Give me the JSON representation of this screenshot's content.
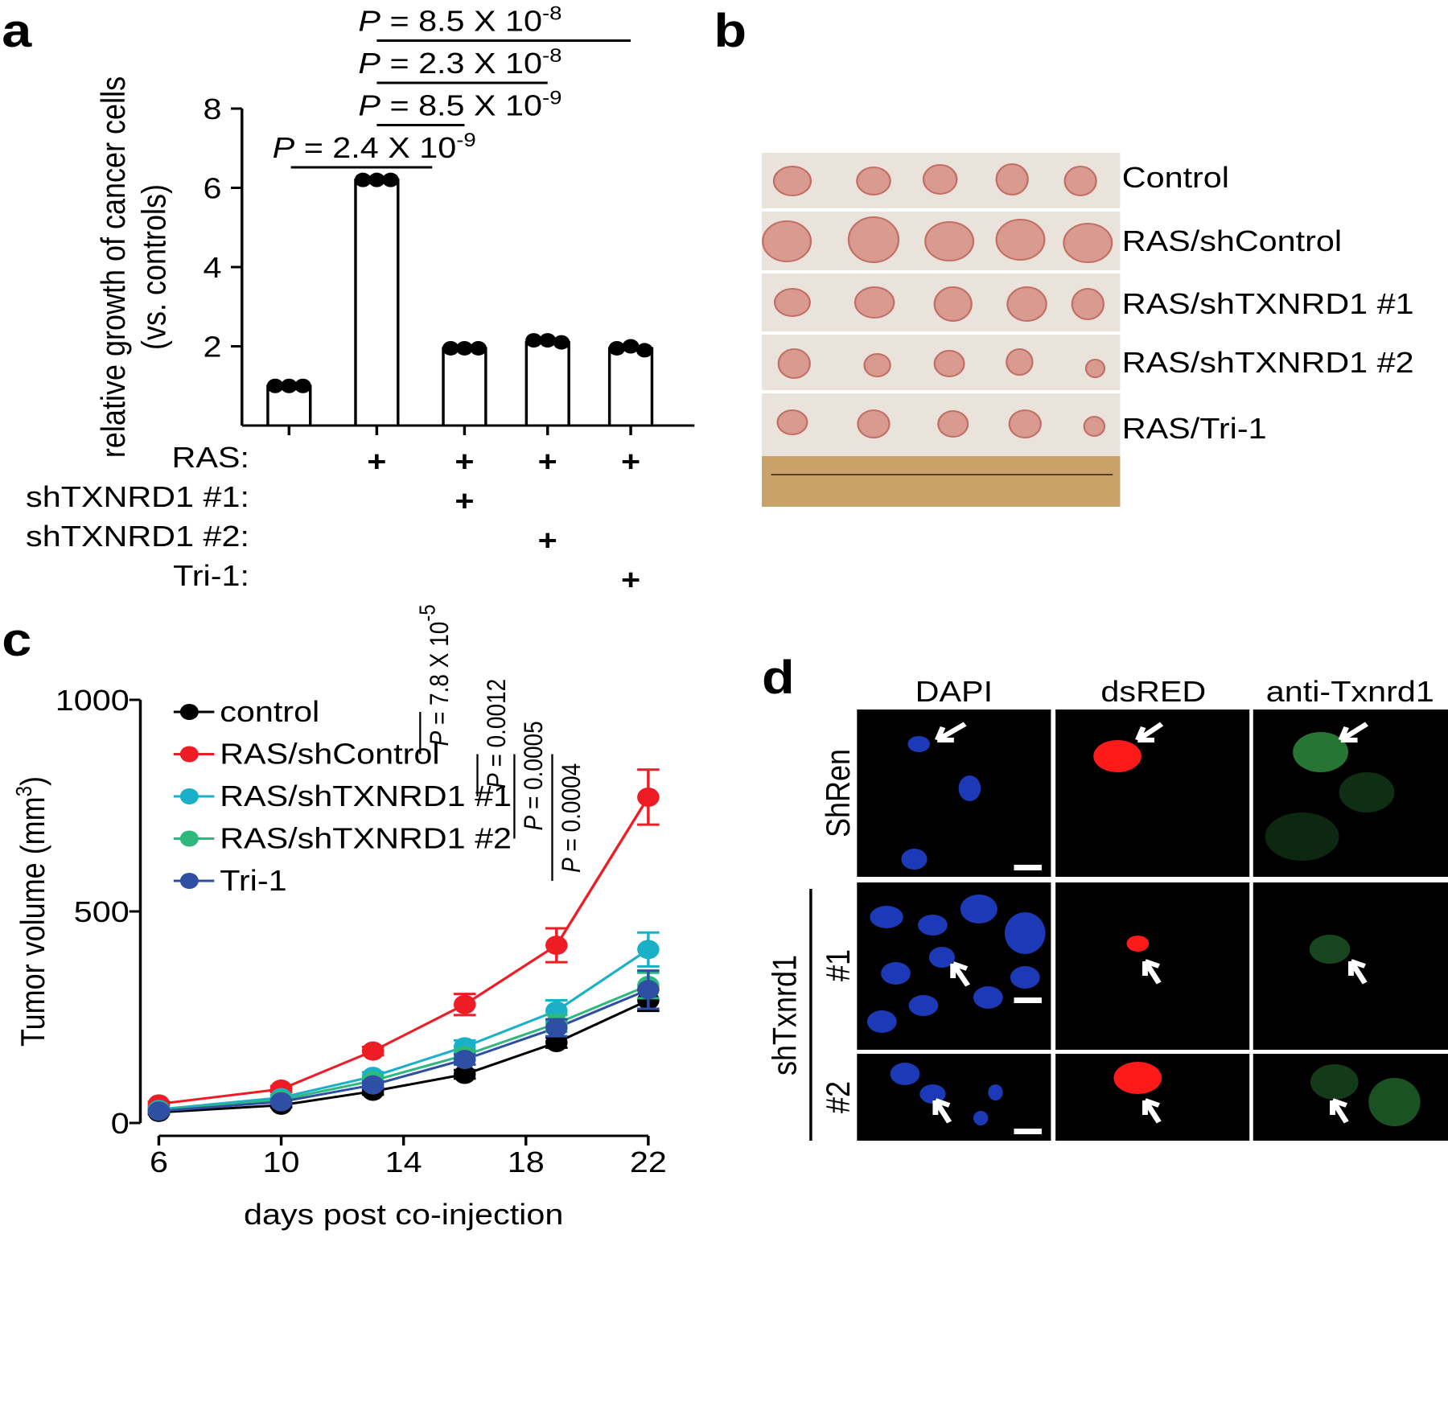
{
  "panel_labels": [
    "a",
    "b",
    "c",
    "d"
  ],
  "chart_data": [
    {
      "type": "bar",
      "ylabel": [
        "relative growth of cancer cells",
        "(vs. controls)"
      ],
      "categories": [
        null,
        null,
        null,
        null,
        null
      ],
      "values": [
        1.0,
        6.2,
        1.95,
        2.1,
        1.95
      ],
      "points": [
        [
          1.0,
          1.0,
          1.0
        ],
        [
          6.2,
          6.2,
          6.2
        ],
        [
          1.95,
          1.95,
          1.95
        ],
        [
          2.15,
          2.15,
          2.1
        ],
        [
          1.95,
          2.0,
          1.9
        ]
      ],
      "color": "#ffffff",
      "ylim": [
        0,
        8
      ],
      "yticks": [
        2,
        4,
        6,
        8
      ],
      "conditions": [
        {
          "label": "RAS:",
          "marks": [
            null,
            "+",
            "+",
            "+",
            "+"
          ]
        },
        {
          "label": "shTXNRD1 #1:",
          "marks": [
            null,
            null,
            "+",
            null,
            null
          ]
        },
        {
          "label": "shTXNRD1 #2:",
          "marks": [
            null,
            null,
            null,
            "+",
            null
          ]
        },
        {
          "label": "Tri-1:",
          "marks": [
            null,
            null,
            null,
            null,
            "+"
          ]
        }
      ],
      "comparisons": [
        {
          "pair": [
            0,
            1
          ],
          "p": "P",
          "text": " = 2.4 X 10",
          "exp": "-9"
        },
        {
          "pair": [
            1,
            2
          ],
          "p": "P",
          "text": " = 8.5 X 10",
          "exp": "-9"
        },
        {
          "pair": [
            1,
            3
          ],
          "p": "P",
          "text": " = 2.3 X 10",
          "exp": "-8"
        },
        {
          "pair": [
            1,
            4
          ],
          "p": "P",
          "text": " = 8.5 X 10",
          "exp": "-8"
        }
      ]
    },
    {
      "type": "line",
      "ylabel": {
        "text": "Tumor volume (mm",
        "sup": "3",
        "end": ")"
      },
      "xlabel": "days post co-injection",
      "x": [
        6,
        10,
        13,
        16,
        19,
        22
      ],
      "xlim": [
        6,
        22
      ],
      "xticks": [
        6,
        10,
        14,
        18,
        22
      ],
      "ylim": [
        0,
        1000
      ],
      "yticks": [
        0,
        500,
        1000
      ],
      "series": [
        {
          "name": "control",
          "color": "#000000",
          "values": [
            25,
            42,
            75,
            115,
            190,
            290
          ],
          "errors": [
            4,
            5,
            8,
            10,
            12,
            25
          ]
        },
        {
          "name": "RAS/shControl",
          "color": "#ee1c25",
          "values": [
            45,
            80,
            170,
            280,
            420,
            770
          ],
          "errors": [
            5,
            7,
            10,
            25,
            40,
            65
          ]
        },
        {
          "name": "RAS/shTXNRD1 #1",
          "color": "#1ab0c8",
          "values": [
            32,
            60,
            110,
            180,
            265,
            410
          ],
          "errors": [
            4,
            6,
            10,
            15,
            25,
            40
          ]
        },
        {
          "name": "RAS/shTXNRD1 #2",
          "color": "#2db87d",
          "values": [
            30,
            55,
            100,
            160,
            235,
            325
          ],
          "errors": [
            4,
            5,
            8,
            12,
            20,
            30
          ]
        },
        {
          "name": "Tri-1",
          "color": "#2e4fa3",
          "values": [
            28,
            50,
            90,
            150,
            225,
            315
          ],
          "errors": [
            4,
            5,
            8,
            12,
            20,
            45
          ]
        }
      ],
      "comparisons": [
        {
          "pair": [
            0,
            1
          ],
          "p": "P",
          "text": " = 7.8 X 10",
          "exp": "-5"
        },
        {
          "pair": [
            1,
            2
          ],
          "p": "P",
          "text": " = 0.0012"
        },
        {
          "pair": [
            1,
            3
          ],
          "p": "P",
          "text": " = 0.0005"
        },
        {
          "pair": [
            1,
            4
          ],
          "p": "P",
          "text": " = 0.0004"
        }
      ]
    }
  ],
  "panel_b": {
    "rows": [
      "Control",
      "RAS/shControl",
      "RAS/shTXNRD1 #1",
      "RAS/shTXNRD1 #2",
      "RAS/Tri-1"
    ]
  },
  "panel_d": {
    "columns": [
      "DAPI",
      "dsRED",
      "anti-Txnrd1"
    ],
    "rows": [
      "ShRen",
      "#1",
      "#2"
    ],
    "group": "shTxnrd1"
  }
}
